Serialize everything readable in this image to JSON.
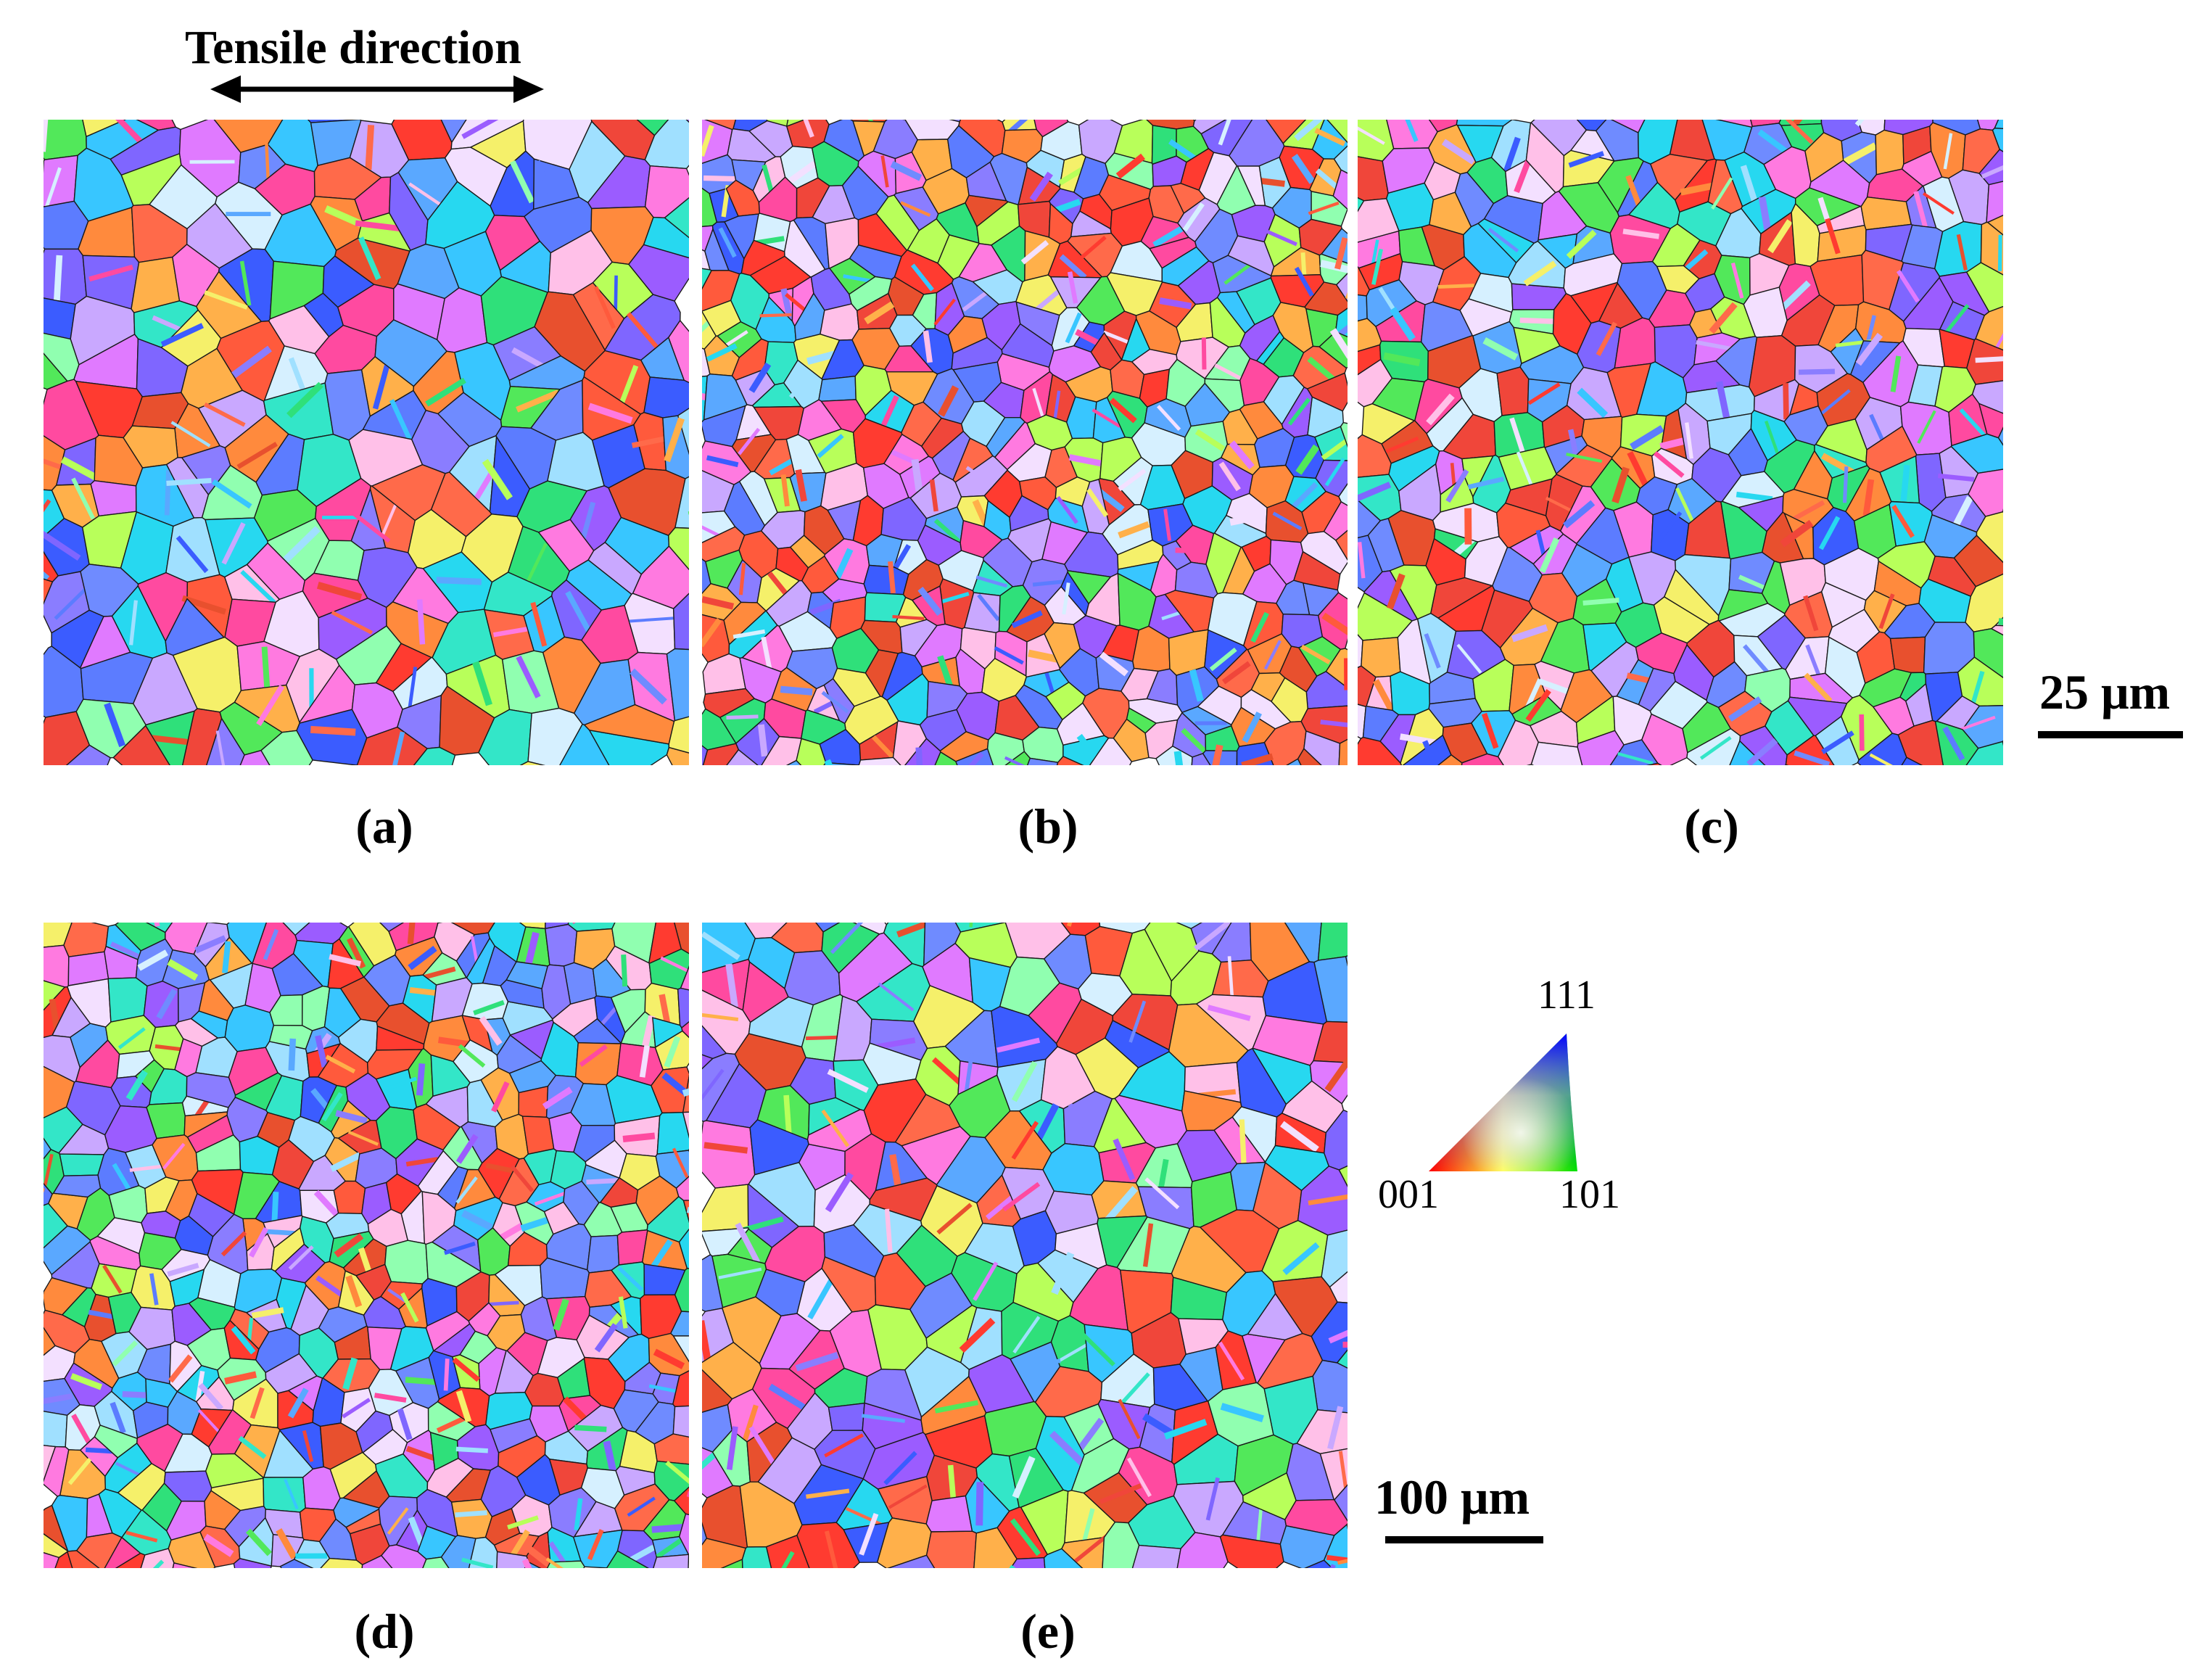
{
  "tensile": {
    "label": "Tensile direction"
  },
  "panels": [
    {
      "label": "(a)",
      "seed": 11,
      "cell": 62
    },
    {
      "label": "(b)",
      "seed": 23,
      "cell": 44
    },
    {
      "label": "(c)",
      "seed": 37,
      "cell": 50
    },
    {
      "label": "(d)",
      "seed": 53,
      "cell": 44
    },
    {
      "label": "(e)",
      "seed": 71,
      "cell": 60
    }
  ],
  "scale_bars": {
    "top": "25 μm",
    "bottom": "100 μm"
  },
  "ipf_legend": {
    "corner_top": "111",
    "corner_left": "001",
    "corner_right": "101"
  },
  "colors": {
    "palette": [
      "#ff3b30",
      "#ff5a3c",
      "#ff6a4a",
      "#f0463a",
      "#e8502e",
      "#9b5cff",
      "#7f66ff",
      "#8a7dff",
      "#6f8bff",
      "#5aa8ff",
      "#38c6ff",
      "#27d8f0",
      "#33e6c8",
      "#2fe07a",
      "#52e85a",
      "#b8ff5a",
      "#f5f06a",
      "#ffb04a",
      "#ff8a3d",
      "#ff7ae0",
      "#e07aff",
      "#c9a8ff",
      "#ffc0e8",
      "#f3e0ff",
      "#d6f0ff",
      "#ff4aa0",
      "#3b5cff",
      "#5c7cff",
      "#a0e0ff",
      "#90ffb0"
    ]
  }
}
